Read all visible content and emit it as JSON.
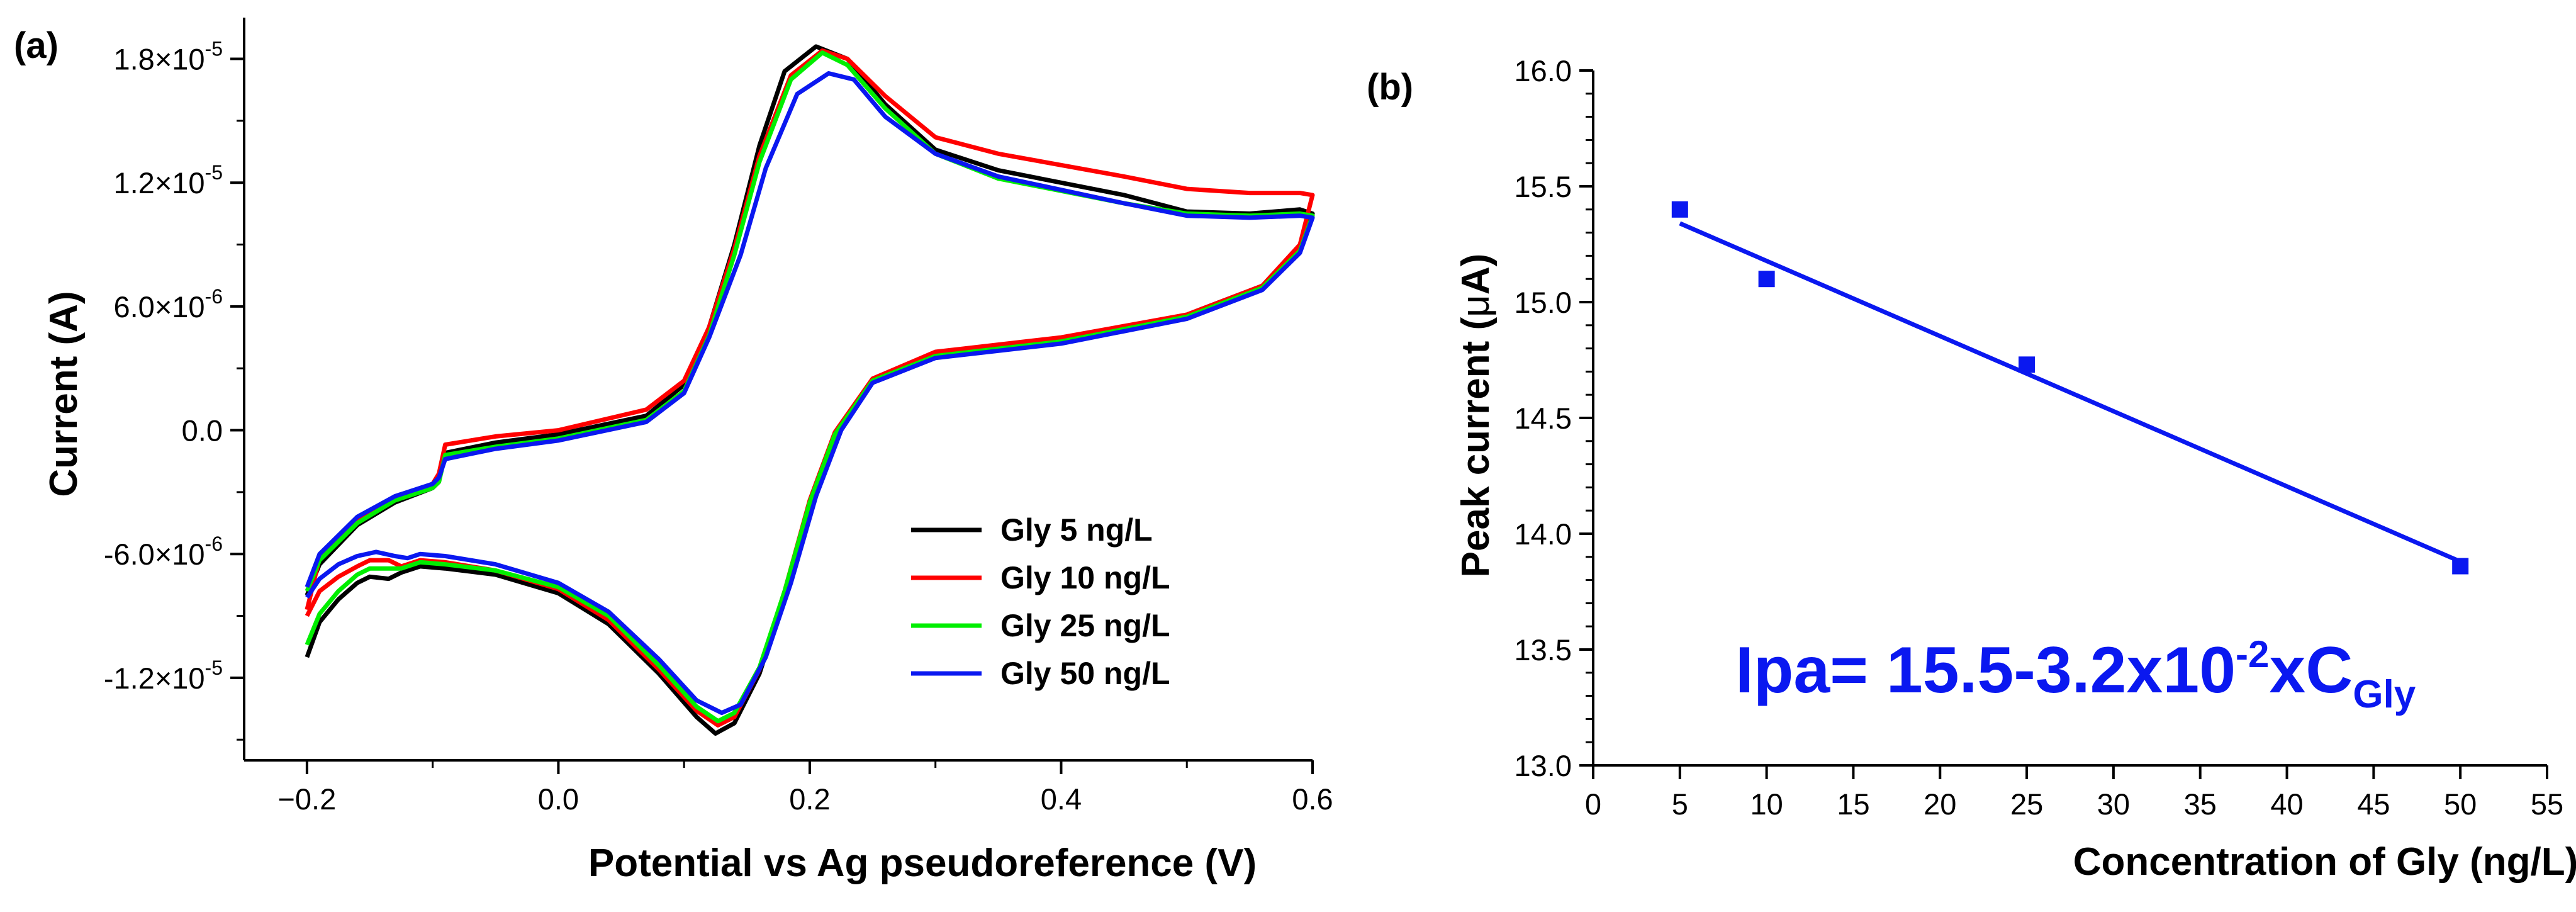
{
  "colors": {
    "black": "#000000",
    "red": "#ff0000",
    "green": "#00ee00",
    "blue": "#0a18f0"
  },
  "chart_data": [
    {
      "panel": "(a)",
      "type": "line",
      "title": "",
      "xlabel": "Potential vs Ag pseudoreference (V)",
      "ylabel": "Current (A)",
      "xlim": [
        -0.25,
        0.6
      ],
      "ylim": [
        -1.6e-05,
        2e-05
      ],
      "x_ticks": [
        {
          "v": -0.2,
          "label": "−0.2"
        },
        {
          "v": 0.0,
          "label": "0.0"
        },
        {
          "v": 0.2,
          "label": "0.2"
        },
        {
          "v": 0.4,
          "label": "0.4"
        },
        {
          "v": 0.6,
          "label": "0.6"
        }
      ],
      "y_ticks": [
        {
          "v": 1.8e-05,
          "m": "1.8×10",
          "e": "-5"
        },
        {
          "v": 1.2e-05,
          "m": "1.2×10",
          "e": "-5"
        },
        {
          "v": 6e-06,
          "m": "6.0×10",
          "e": "-6"
        },
        {
          "v": 0.0,
          "m": "0.0",
          "e": ""
        },
        {
          "v": -6e-06,
          "m": "-6.0×10",
          "e": "-6"
        },
        {
          "v": -1.2e-05,
          "m": "-1.2×10",
          "e": "-5"
        }
      ],
      "legend_position": "lower-right",
      "series": [
        {
          "name": "Gly 5 ng/L",
          "color": "#000000",
          "points": [
            [
              -0.2,
              -1.1e-05
            ],
            [
              -0.19,
              -9.3e-06
            ],
            [
              -0.175,
              -8.2e-06
            ],
            [
              -0.16,
              -7.4e-06
            ],
            [
              -0.15,
              -7.1e-06
            ],
            [
              -0.135,
              -7.2e-06
            ],
            [
              -0.125,
              -6.9e-06
            ],
            [
              -0.11,
              -6.6e-06
            ],
            [
              -0.09,
              -6.7e-06
            ],
            [
              -0.05,
              -7e-06
            ],
            [
              0.0,
              -7.9e-06
            ],
            [
              0.04,
              -9.4e-06
            ],
            [
              0.08,
              -1.18e-05
            ],
            [
              0.11,
              -1.39e-05
            ],
            [
              0.125,
              -1.47e-05
            ],
            [
              0.14,
              -1.42e-05
            ],
            [
              0.16,
              -1.18e-05
            ],
            [
              0.18,
              -8e-06
            ],
            [
              0.2,
              -3.5e-06
            ],
            [
              0.22,
              -2e-07
            ],
            [
              0.25,
              2.4e-06
            ],
            [
              0.3,
              3.6e-06
            ],
            [
              0.4,
              4.4e-06
            ],
            [
              0.5,
              5.6e-06
            ],
            [
              0.56,
              7e-06
            ],
            [
              0.59,
              8.8e-06
            ],
            [
              0.6,
              1.05e-05
            ],
            [
              0.59,
              1.07e-05
            ],
            [
              0.55,
              1.05e-05
            ],
            [
              0.5,
              1.06e-05
            ],
            [
              0.45,
              1.14e-05
            ],
            [
              0.35,
              1.26e-05
            ],
            [
              0.3,
              1.36e-05
            ],
            [
              0.26,
              1.58e-05
            ],
            [
              0.23,
              1.8e-05
            ],
            [
              0.205,
              1.86e-05
            ],
            [
              0.18,
              1.74e-05
            ],
            [
              0.16,
              1.38e-05
            ],
            [
              0.14,
              9e-06
            ],
            [
              0.12,
              5e-06
            ],
            [
              0.1,
              2.2e-06
            ],
            [
              0.07,
              7e-07
            ],
            [
              0.0,
              -2e-07
            ],
            [
              -0.05,
              -6e-07
            ],
            [
              -0.09,
              -1.1e-06
            ],
            [
              -0.095,
              -2.5e-06
            ],
            [
              -0.1,
              -2.8e-06
            ],
            [
              -0.13,
              -3.5e-06
            ],
            [
              -0.16,
              -4.6e-06
            ],
            [
              -0.19,
              -6.5e-06
            ],
            [
              -0.2,
              -8e-06
            ]
          ]
        },
        {
          "name": "Gly 10 ng/L",
          "color": "#ff0000",
          "points": [
            [
              -0.2,
              -9e-06
            ],
            [
              -0.19,
              -7.8e-06
            ],
            [
              -0.175,
              -7.1e-06
            ],
            [
              -0.16,
              -6.6e-06
            ],
            [
              -0.15,
              -6.3e-06
            ],
            [
              -0.135,
              -6.3e-06
            ],
            [
              -0.125,
              -6.6e-06
            ],
            [
              -0.11,
              -6.3e-06
            ],
            [
              -0.09,
              -6.4e-06
            ],
            [
              -0.05,
              -6.8e-06
            ],
            [
              0.0,
              -7.7e-06
            ],
            [
              0.04,
              -9.2e-06
            ],
            [
              0.08,
              -1.16e-05
            ],
            [
              0.11,
              -1.36e-05
            ],
            [
              0.127,
              -1.43e-05
            ],
            [
              0.14,
              -1.39e-05
            ],
            [
              0.16,
              -1.16e-05
            ],
            [
              0.18,
              -7.8e-06
            ],
            [
              0.2,
              -3.4e-06
            ],
            [
              0.22,
              -1e-07
            ],
            [
              0.25,
              2.5e-06
            ],
            [
              0.3,
              3.8e-06
            ],
            [
              0.4,
              4.5e-06
            ],
            [
              0.5,
              5.6e-06
            ],
            [
              0.56,
              7e-06
            ],
            [
              0.59,
              9e-06
            ],
            [
              0.6,
              1.14e-05
            ],
            [
              0.59,
              1.15e-05
            ],
            [
              0.55,
              1.15e-05
            ],
            [
              0.5,
              1.17e-05
            ],
            [
              0.45,
              1.23e-05
            ],
            [
              0.35,
              1.34e-05
            ],
            [
              0.3,
              1.42e-05
            ],
            [
              0.26,
              1.62e-05
            ],
            [
              0.23,
              1.8e-05
            ],
            [
              0.21,
              1.84e-05
            ],
            [
              0.185,
              1.72e-05
            ],
            [
              0.16,
              1.33e-05
            ],
            [
              0.14,
              8.8e-06
            ],
            [
              0.12,
              5e-06
            ],
            [
              0.1,
              2.4e-06
            ],
            [
              0.07,
              1e-06
            ],
            [
              0.0,
              0.0
            ],
            [
              -0.05,
              -3e-07
            ],
            [
              -0.09,
              -7e-07
            ],
            [
              -0.095,
              -2.1e-06
            ],
            [
              -0.1,
              -2.6e-06
            ],
            [
              -0.13,
              -3.3e-06
            ],
            [
              -0.16,
              -4.4e-06
            ],
            [
              -0.19,
              -6.2e-06
            ],
            [
              -0.2,
              -8.7e-06
            ]
          ]
        },
        {
          "name": "Gly 25 ng/L",
          "color": "#00ee00",
          "points": [
            [
              -0.2,
              -1.04e-05
            ],
            [
              -0.19,
              -8.9e-06
            ],
            [
              -0.175,
              -7.8e-06
            ],
            [
              -0.16,
              -7e-06
            ],
            [
              -0.15,
              -6.7e-06
            ],
            [
              -0.135,
              -6.7e-06
            ],
            [
              -0.125,
              -6.7e-06
            ],
            [
              -0.11,
              -6.4e-06
            ],
            [
              -0.09,
              -6.5e-06
            ],
            [
              -0.05,
              -6.8e-06
            ],
            [
              0.0,
              -7.6e-06
            ],
            [
              0.04,
              -9e-06
            ],
            [
              0.08,
              -1.14e-05
            ],
            [
              0.11,
              -1.34e-05
            ],
            [
              0.127,
              -1.41e-05
            ],
            [
              0.14,
              -1.37e-05
            ],
            [
              0.16,
              -1.15e-05
            ],
            [
              0.18,
              -7.8e-06
            ],
            [
              0.2,
              -3.5e-06
            ],
            [
              0.22,
              -2e-07
            ],
            [
              0.25,
              2.4e-06
            ],
            [
              0.3,
              3.6e-06
            ],
            [
              0.4,
              4.3e-06
            ],
            [
              0.5,
              5.5e-06
            ],
            [
              0.56,
              6.9e-06
            ],
            [
              0.59,
              8.7e-06
            ],
            [
              0.6,
              1.04e-05
            ],
            [
              0.59,
              1.05e-05
            ],
            [
              0.55,
              1.04e-05
            ],
            [
              0.5,
              1.05e-05
            ],
            [
              0.45,
              1.1e-05
            ],
            [
              0.35,
              1.22e-05
            ],
            [
              0.3,
              1.34e-05
            ],
            [
              0.26,
              1.56e-05
            ],
            [
              0.23,
              1.77e-05
            ],
            [
              0.21,
              1.83e-05
            ],
            [
              0.185,
              1.7e-05
            ],
            [
              0.16,
              1.3e-05
            ],
            [
              0.14,
              8.5e-06
            ],
            [
              0.12,
              4.6e-06
            ],
            [
              0.1,
              1.9e-06
            ],
            [
              0.07,
              5e-07
            ],
            [
              0.0,
              -4e-07
            ],
            [
              -0.05,
              -8e-07
            ],
            [
              -0.09,
              -1.2e-06
            ],
            [
              -0.095,
              -2.5e-06
            ],
            [
              -0.1,
              -2.8e-06
            ],
            [
              -0.13,
              -3.4e-06
            ],
            [
              -0.16,
              -4.5e-06
            ],
            [
              -0.19,
              -6.3e-06
            ],
            [
              -0.2,
              -7.8e-06
            ]
          ]
        },
        {
          "name": "Gly 50 ng/L",
          "color": "#0a18f0",
          "points": [
            [
              -0.2,
              -8.1e-06
            ],
            [
              -0.19,
              -7.2e-06
            ],
            [
              -0.175,
              -6.5e-06
            ],
            [
              -0.16,
              -6.1e-06
            ],
            [
              -0.145,
              -5.9e-06
            ],
            [
              -0.13,
              -6.1e-06
            ],
            [
              -0.12,
              -6.2e-06
            ],
            [
              -0.11,
              -6e-06
            ],
            [
              -0.09,
              -6.1e-06
            ],
            [
              -0.05,
              -6.5e-06
            ],
            [
              0.0,
              -7.4e-06
            ],
            [
              0.04,
              -8.8e-06
            ],
            [
              0.08,
              -1.11e-05
            ],
            [
              0.11,
              -1.31e-05
            ],
            [
              0.13,
              -1.37e-05
            ],
            [
              0.145,
              -1.33e-05
            ],
            [
              0.165,
              -1.1e-05
            ],
            [
              0.185,
              -7.4e-06
            ],
            [
              0.205,
              -3.2e-06
            ],
            [
              0.225,
              0.0
            ],
            [
              0.25,
              2.3e-06
            ],
            [
              0.3,
              3.5e-06
            ],
            [
              0.4,
              4.2e-06
            ],
            [
              0.5,
              5.4e-06
            ],
            [
              0.56,
              6.8e-06
            ],
            [
              0.59,
              8.6e-06
            ],
            [
              0.6,
              1.03e-05
            ],
            [
              0.59,
              1.04e-05
            ],
            [
              0.55,
              1.03e-05
            ],
            [
              0.5,
              1.04e-05
            ],
            [
              0.45,
              1.1e-05
            ],
            [
              0.35,
              1.23e-05
            ],
            [
              0.3,
              1.34e-05
            ],
            [
              0.26,
              1.52e-05
            ],
            [
              0.235,
              1.7e-05
            ],
            [
              0.215,
              1.73e-05
            ],
            [
              0.19,
              1.63e-05
            ],
            [
              0.165,
              1.27e-05
            ],
            [
              0.145,
              8.5e-06
            ],
            [
              0.12,
              4.5e-06
            ],
            [
              0.1,
              1.8e-06
            ],
            [
              0.07,
              4e-07
            ],
            [
              0.0,
              -5e-07
            ],
            [
              -0.05,
              -9e-07
            ],
            [
              -0.09,
              -1.4e-06
            ],
            [
              -0.095,
              -2.3e-06
            ],
            [
              -0.1,
              -2.6e-06
            ],
            [
              -0.13,
              -3.2e-06
            ],
            [
              -0.16,
              -4.2e-06
            ],
            [
              -0.19,
              -6e-06
            ],
            [
              -0.2,
              -7.6e-06
            ]
          ]
        }
      ]
    },
    {
      "panel": "(b)",
      "type": "scatter",
      "title": "",
      "xlabel": "Concentration of Gly (ng/L)",
      "ylabel_prefix": "Peak current (",
      "ylabel_mu": "μ",
      "ylabel_suffix": "A)",
      "xlim": [
        0,
        55
      ],
      "ylim": [
        13.0,
        16.0
      ],
      "x_ticks": [
        "0",
        "5",
        "10",
        "15",
        "20",
        "25",
        "30",
        "35",
        "40",
        "45",
        "50",
        "55"
      ],
      "y_ticks": [
        "13.0",
        "13.5",
        "14.0",
        "14.5",
        "15.0",
        "15.5",
        "16.0"
      ],
      "points": [
        {
          "x": 5,
          "y": 15.4
        },
        {
          "x": 10,
          "y": 15.1
        },
        {
          "x": 25,
          "y": 14.73
        },
        {
          "x": 50,
          "y": 13.86
        }
      ],
      "fit_line": {
        "x": [
          5,
          50
        ],
        "y": [
          15.34,
          13.88
        ]
      },
      "equation": {
        "lhs": "Ipa= 15.5-3.2x10",
        "exponent": "-2",
        "mid": "xC",
        "subscript": "Gly"
      }
    }
  ]
}
